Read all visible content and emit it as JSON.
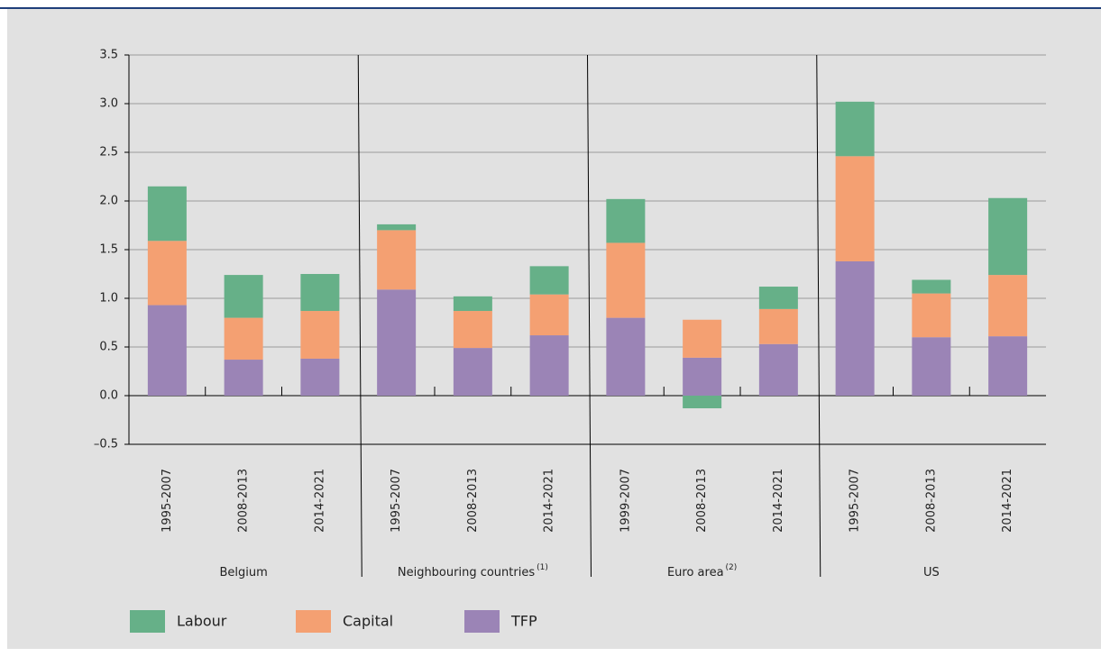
{
  "chart_data": {
    "type": "stacked_bar",
    "groups": [
      {
        "name": "Belgium",
        "categories": [
          "1995-2007",
          "2008-2013",
          "2014-2021"
        ]
      },
      {
        "name": "Neighbouring countries",
        "note": "(1)",
        "categories": [
          "1995-2007",
          "2008-2013",
          "2014-2021"
        ]
      },
      {
        "name": "Euro area",
        "note": "(2)",
        "categories": [
          "1999-2007",
          "2008-2013",
          "2014-2021"
        ]
      },
      {
        "name": "US",
        "categories": [
          "1995-2007",
          "2008-2013",
          "2014-2021"
        ]
      }
    ],
    "series": [
      {
        "name": "Labour",
        "color": "#66b088",
        "values": [
          0.56,
          0.44,
          0.38,
          0.06,
          0.15,
          0.29,
          0.45,
          -0.13,
          0.23,
          0.56,
          0.14,
          0.79
        ]
      },
      {
        "name": "Capital",
        "color": "#f4a072",
        "values": [
          0.66,
          0.43,
          0.49,
          0.61,
          0.38,
          0.42,
          0.77,
          0.39,
          0.36,
          1.08,
          0.45,
          0.63
        ]
      },
      {
        "name": "TFP",
        "color": "#9b84b6",
        "values": [
          0.93,
          0.37,
          0.38,
          1.09,
          0.49,
          0.62,
          0.8,
          0.39,
          0.53,
          1.38,
          0.6,
          0.61
        ]
      }
    ],
    "ylim": [
      -0.5,
      3.5
    ],
    "yticks": [
      {
        "value": -0.5,
        "label": "–0.5"
      },
      {
        "value": 0,
        "label": "0.0"
      },
      0.5,
      {
        "value": 1,
        "label": "1.0"
      },
      1.5,
      {
        "value": 2,
        "label": "2.0"
      },
      2.5,
      {
        "value": 3,
        "label": "3.0"
      },
      3.5
    ],
    "grid": true
  }
}
